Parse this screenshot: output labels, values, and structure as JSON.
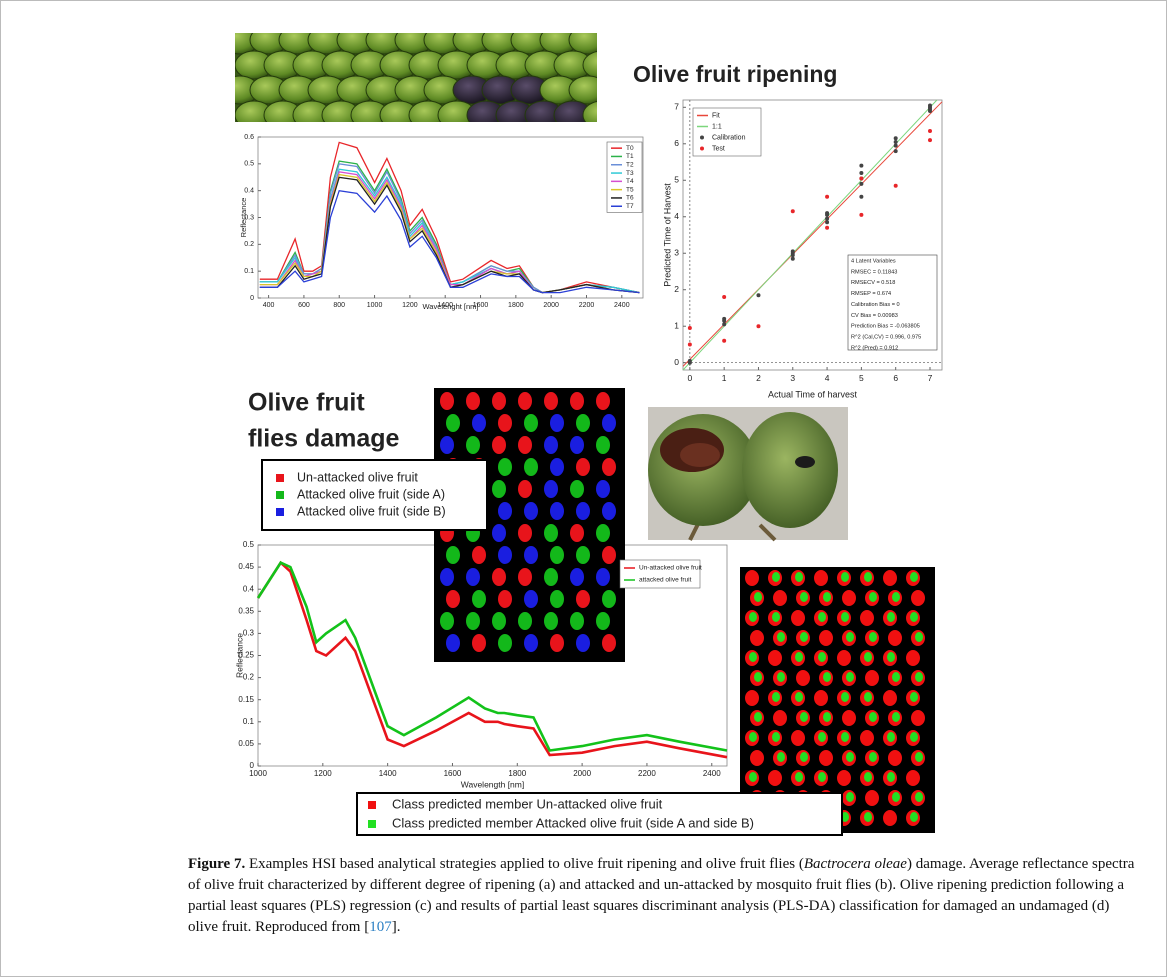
{
  "heading_ripening": "Olive fruit ripening",
  "heading_damage": [
    "Olive fruit",
    "flies damage"
  ],
  "legend_classes": [
    {
      "label": "Un-attacked olive fruit",
      "color": "#e8141b"
    },
    {
      "label": "Attacked olive fruit (side A)",
      "color": "#13b81a"
    },
    {
      "label": "Attacked olive fruit (side B)",
      "color": "#1a1ee0"
    }
  ],
  "legend_predicted": [
    {
      "label": "Class predicted member Un-attacked olive fruit",
      "color": "#f01010"
    },
    {
      "label": "Class predicted member Attacked olive fruit (side A and side B)",
      "color": "#22e022"
    }
  ],
  "chart_data": [
    {
      "type": "line",
      "x_label": "Wavelenght [nm]",
      "y_label": "Reflectance",
      "x": [
        350,
        450,
        550,
        600,
        650,
        700,
        750,
        800,
        900,
        1000,
        1070,
        1150,
        1200,
        1270,
        1350,
        1430,
        1500,
        1660,
        1750,
        1820,
        1900,
        1950,
        2050,
        2200,
        2350,
        2500
      ],
      "series": [
        {
          "name": "T0",
          "color": "#e8262a",
          "values": [
            0.07,
            0.07,
            0.22,
            0.1,
            0.1,
            0.12,
            0.45,
            0.58,
            0.56,
            0.43,
            0.52,
            0.4,
            0.27,
            0.33,
            0.22,
            0.06,
            0.07,
            0.14,
            0.11,
            0.12,
            0.04,
            0.02,
            0.03,
            0.06,
            0.04,
            0.02
          ]
        },
        {
          "name": "T1",
          "color": "#2bb24a",
          "values": [
            0.06,
            0.06,
            0.17,
            0.09,
            0.09,
            0.11,
            0.4,
            0.51,
            0.5,
            0.4,
            0.48,
            0.37,
            0.25,
            0.3,
            0.2,
            0.05,
            0.06,
            0.12,
            0.1,
            0.11,
            0.04,
            0.02,
            0.03,
            0.05,
            0.04,
            0.02
          ]
        },
        {
          "name": "T2",
          "color": "#6a8fd8",
          "values": [
            0.06,
            0.06,
            0.16,
            0.09,
            0.09,
            0.11,
            0.39,
            0.5,
            0.49,
            0.39,
            0.47,
            0.36,
            0.24,
            0.29,
            0.19,
            0.05,
            0.06,
            0.12,
            0.1,
            0.1,
            0.04,
            0.02,
            0.03,
            0.05,
            0.04,
            0.02
          ]
        },
        {
          "name": "T3",
          "color": "#2fc9d6",
          "values": [
            0.06,
            0.06,
            0.15,
            0.08,
            0.09,
            0.1,
            0.37,
            0.48,
            0.47,
            0.38,
            0.45,
            0.35,
            0.23,
            0.28,
            0.18,
            0.05,
            0.06,
            0.11,
            0.09,
            0.1,
            0.03,
            0.02,
            0.03,
            0.05,
            0.04,
            0.02
          ]
        },
        {
          "name": "T4",
          "color": "#d64fd0",
          "values": [
            0.05,
            0.05,
            0.14,
            0.08,
            0.09,
            0.1,
            0.36,
            0.47,
            0.46,
            0.37,
            0.44,
            0.34,
            0.22,
            0.27,
            0.18,
            0.05,
            0.05,
            0.11,
            0.09,
            0.1,
            0.03,
            0.02,
            0.03,
            0.05,
            0.03,
            0.02
          ]
        },
        {
          "name": "T5",
          "color": "#d9c62a",
          "values": [
            0.05,
            0.05,
            0.13,
            0.08,
            0.08,
            0.1,
            0.35,
            0.46,
            0.45,
            0.36,
            0.43,
            0.33,
            0.22,
            0.26,
            0.17,
            0.04,
            0.05,
            0.1,
            0.09,
            0.09,
            0.03,
            0.02,
            0.03,
            0.05,
            0.03,
            0.02
          ]
        },
        {
          "name": "T6",
          "color": "#222222",
          "values": [
            0.04,
            0.04,
            0.12,
            0.07,
            0.08,
            0.09,
            0.34,
            0.45,
            0.44,
            0.35,
            0.42,
            0.32,
            0.21,
            0.25,
            0.16,
            0.04,
            0.05,
            0.1,
            0.08,
            0.09,
            0.03,
            0.02,
            0.03,
            0.05,
            0.03,
            0.02
          ]
        },
        {
          "name": "T7",
          "color": "#2a3fd6",
          "values": [
            0.04,
            0.04,
            0.1,
            0.06,
            0.07,
            0.08,
            0.3,
            0.4,
            0.39,
            0.32,
            0.38,
            0.29,
            0.19,
            0.23,
            0.15,
            0.04,
            0.04,
            0.09,
            0.08,
            0.08,
            0.03,
            0.02,
            0.02,
            0.04,
            0.03,
            0.02
          ]
        }
      ],
      "xlim": [
        340,
        2520
      ],
      "ylim": [
        0,
        0.6
      ],
      "xticks": [
        400,
        600,
        800,
        1000,
        1200,
        1400,
        1600,
        1800,
        2000,
        2200,
        2400
      ],
      "yticks": [
        0,
        0.1,
        0.2,
        0.3,
        0.4,
        0.5,
        0.6
      ]
    },
    {
      "type": "scatter",
      "x_label": "Actual Time of harvest",
      "y_label": "Predicted Time of Harvest",
      "series": [
        {
          "name": "Fit",
          "color": "#e8473a",
          "style": "line",
          "x": [
            -0.2,
            7.35
          ],
          "values": [
            -0.1,
            7.15
          ]
        },
        {
          "name": "1:1",
          "color": "#7cd67c",
          "style": "line",
          "x": [
            -0.2,
            7.2
          ],
          "values": [
            -0.2,
            7.2
          ]
        },
        {
          "name": "Calibration",
          "color": "#444444",
          "style": "marker",
          "x": [
            0,
            0,
            1,
            1,
            1,
            2,
            3,
            3,
            3,
            3,
            4,
            4,
            4,
            4,
            5,
            5,
            5,
            5,
            5,
            6,
            6,
            6,
            6,
            7,
            7,
            7,
            7
          ],
          "values": [
            0,
            0.05,
            1.05,
            1.15,
            1.2,
            1.85,
            2.85,
            2.95,
            3.05,
            3.0,
            3.85,
            3.95,
            4.05,
            4.1,
            4.55,
            4.9,
            5.05,
            5.2,
            5.4,
            5.8,
            5.95,
            6.05,
            6.15,
            6.9,
            7.0,
            7.05,
            6.95
          ]
        },
        {
          "name": "Test",
          "color": "#e8262a",
          "style": "marker",
          "x": [
            0,
            0,
            1,
            1,
            2,
            3,
            4,
            4,
            5,
            5,
            6,
            7,
            7
          ],
          "values": [
            0.95,
            0.5,
            1.8,
            0.6,
            1.0,
            4.15,
            4.55,
            3.7,
            5.05,
            4.05,
            4.85,
            6.35,
            6.1
          ]
        }
      ],
      "annotations": [
        "4 Latent Variables",
        "RMSEC = 0.11843",
        "RMSECV = 0.518",
        "RMSEP = 0.674",
        "Calibration Bias = 0",
        "CV Bias = 0.00983",
        "Prediction Bias = -0.063805",
        "R^2 (Cal,CV) = 0.996, 0.975",
        "R^2 (Pred) = 0.912"
      ],
      "xlim": [
        -0.2,
        7.35
      ],
      "ylim": [
        -0.2,
        7.2
      ],
      "xticks": [
        0,
        1,
        2,
        3,
        4,
        5,
        6,
        7
      ],
      "yticks": [
        0,
        1,
        2,
        3,
        4,
        5,
        6,
        7
      ]
    },
    {
      "type": "line",
      "x_label": "Wavelength [nm]",
      "y_label": "Reflectance",
      "x": [
        1000,
        1070,
        1100,
        1150,
        1180,
        1210,
        1270,
        1300,
        1350,
        1400,
        1450,
        1550,
        1650,
        1700,
        1740,
        1760,
        1800,
        1850,
        1900,
        2000,
        2100,
        2200,
        2300,
        2447
      ],
      "series": [
        {
          "name": "Un-attacked olive fruit",
          "color": "#e8141b",
          "values": [
            0.38,
            0.46,
            0.44,
            0.33,
            0.26,
            0.25,
            0.29,
            0.26,
            0.16,
            0.06,
            0.045,
            0.08,
            0.12,
            0.1,
            0.1,
            0.095,
            0.09,
            0.085,
            0.025,
            0.03,
            0.045,
            0.055,
            0.04,
            0.02
          ]
        },
        {
          "name": "attacked olive fruit",
          "color": "#13c21a",
          "values": [
            0.38,
            0.46,
            0.45,
            0.36,
            0.28,
            0.3,
            0.33,
            0.29,
            0.19,
            0.09,
            0.07,
            0.11,
            0.155,
            0.13,
            0.12,
            0.12,
            0.115,
            0.11,
            0.035,
            0.045,
            0.06,
            0.07,
            0.055,
            0.035
          ]
        }
      ],
      "xlim": [
        1000,
        2447
      ],
      "ylim": [
        0,
        0.5
      ],
      "xticks": [
        1000,
        1200,
        1400,
        1600,
        1800,
        2000,
        2200,
        2400
      ],
      "yticks": [
        0,
        0.05,
        0.1,
        0.15,
        0.2,
        0.25,
        0.3,
        0.35,
        0.4,
        0.45,
        0.5
      ]
    }
  ],
  "caption": {
    "label": "Figure 7.",
    "text_1": "Examples HSI based analytical strategies applied to olive fruit ripening and olive fruit flies (",
    "species": "Bactrocera oleae",
    "text_2": ") damage. Average reflectance spectra of olive fruit characterized by different degree of ripening (a) and attacked and un-attacked by mosquito fruit flies (b). Olive ripening prediction following a partial least squares (PLS) regression (c) and results of partial least squares discriminant analysis (PLS-DA) classification for damaged an undamaged (d) olive fruit. Reproduced from [",
    "ref": "107",
    "text_3": "]."
  }
}
